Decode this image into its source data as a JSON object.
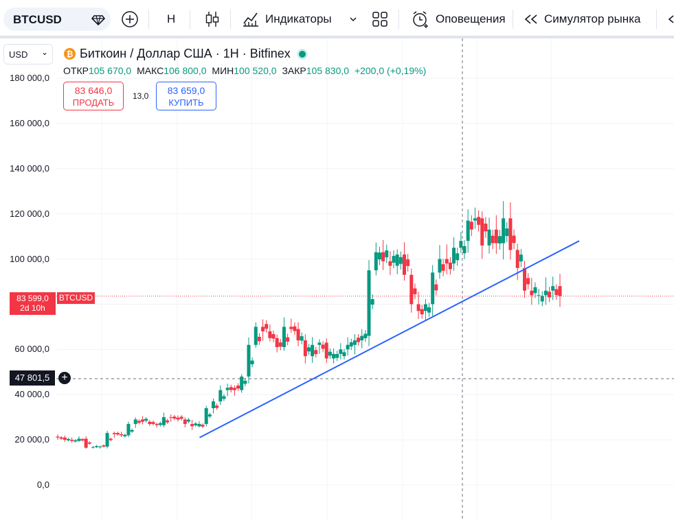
{
  "toolbar": {
    "symbol": "BTCUSD",
    "interval": "H",
    "indicators_label": "Индикаторы",
    "alerts_label": "Оповещения",
    "replay_label": "Симулятор рынка"
  },
  "chart": {
    "currency": "USD",
    "title": "Биткоин / Доллар США · 1H · Bitfinex",
    "btc_glyph": "₿",
    "ohlc": {
      "open_label": "ОТКР",
      "open": "105 670,0",
      "high_label": "МАКС",
      "high": "106 800,0",
      "low_label": "МИН",
      "low": "100 520,0",
      "close_label": "ЗАКР",
      "close": "105 830,0",
      "change": "+200,0 (+0,19%)"
    },
    "sell_price": "83 646,0",
    "sell_label": "ПРОДАТЬ",
    "spread": "13,0",
    "buy_price": "83 659,0",
    "buy_label": "КУПИТЬ",
    "price_scale": [
      "180 000,0",
      "160 000,0",
      "140 000,0",
      "120 000,0",
      "100 000,0",
      "60 000,0",
      "40 000,0",
      "20 000,0",
      "0,0"
    ],
    "last_price": "83 599,0",
    "last_price_countdown": "2d 10h",
    "last_price_symbol": "BTCUSD",
    "crosshair_price": "47 801,5",
    "colors": {
      "up": "#089981",
      "down": "#f23645",
      "trendline": "#2962ff"
    }
  },
  "chart_data": {
    "type": "candlestick",
    "y_range": [
      0,
      180000
    ],
    "closes_approx": [
      21000,
      20000,
      19500,
      20500,
      16500,
      16800,
      17000,
      23000,
      22500,
      22000,
      27000,
      29000,
      28000,
      27000,
      26500,
      30000,
      29800,
      29000,
      27000,
      26000,
      27000,
      34000,
      37000,
      42000,
      43000,
      42000,
      48000,
      62000,
      70000,
      68000,
      65000,
      61000,
      70000,
      69000,
      64000,
      57000,
      62000,
      63000,
      56000,
      58000,
      60000,
      62000,
      64000,
      66000,
      95000,
      103000,
      99000,
      97000,
      102000,
      93000,
      80000,
      77000,
      80000,
      94000,
      100000,
      98000,
      105000,
      108000,
      117000,
      118000,
      106000,
      113000,
      107000,
      118000,
      104000,
      96000,
      86000,
      84000,
      84000,
      86000,
      88000,
      83599
    ],
    "last_price": 83599,
    "trendline": {
      "from": [
        38,
        21000
      ],
      "to": [
        63,
        108000
      ]
    }
  }
}
